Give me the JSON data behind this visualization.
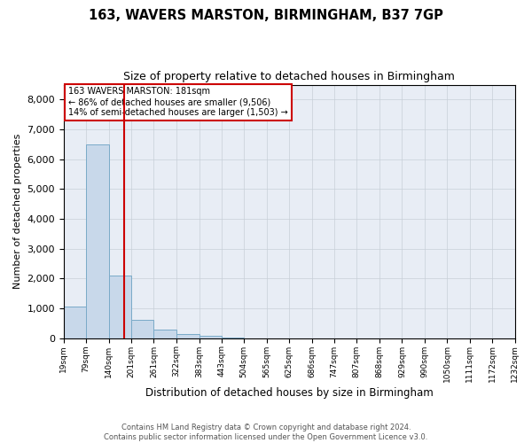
{
  "title": "163, WAVERS MARSTON, BIRMINGHAM, B37 7GP",
  "subtitle": "Size of property relative to detached houses in Birmingham",
  "xlabel": "Distribution of detached houses by size in Birmingham",
  "ylabel": "Number of detached properties",
  "footer_line1": "Contains HM Land Registry data © Crown copyright and database right 2024.",
  "footer_line2": "Contains public sector information licensed under the Open Government Licence v3.0.",
  "annotation_line1": "163 WAVERS MARSTON: 181sqm",
  "annotation_line2": "← 86% of detached houses are smaller (9,506)",
  "annotation_line3": "14% of semi-detached houses are larger (1,503) →",
  "bar_color": "#c8d8ea",
  "bar_edge_color": "#7aaac8",
  "vline_color": "#cc0000",
  "vline_x": 181,
  "annotation_box_edge_color": "#cc0000",
  "bin_edges": [
    19,
    79,
    140,
    201,
    261,
    322,
    383,
    443,
    504,
    565,
    625,
    686,
    747,
    807,
    868,
    929,
    990,
    1050,
    1111,
    1172,
    1232
  ],
  "bin_values": [
    1050,
    6500,
    2100,
    600,
    280,
    130,
    80,
    30,
    0,
    0,
    0,
    0,
    0,
    0,
    0,
    0,
    0,
    0,
    0,
    0
  ],
  "ylim": [
    0,
    8500
  ],
  "yticks": [
    0,
    1000,
    2000,
    3000,
    4000,
    5000,
    6000,
    7000,
    8000
  ],
  "background_color": "#ffffff",
  "plot_bg_color": "#e8edf5",
  "grid_color": "#c8cfd8"
}
